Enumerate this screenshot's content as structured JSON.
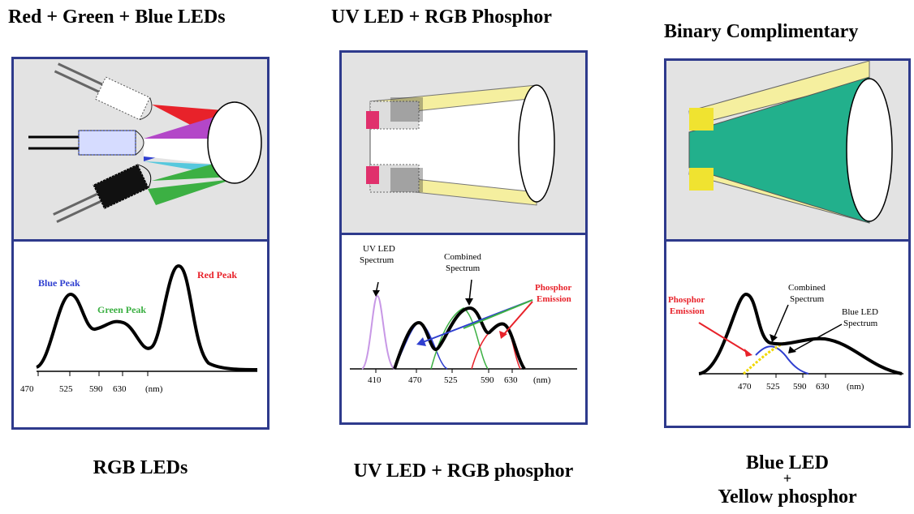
{
  "col1": {
    "title": "Red + Green + Blue LEDs",
    "caption": "RGB LEDs",
    "labels": {
      "blue_peak": "Blue Peak",
      "green_peak": "Green Peak",
      "red_peak": "Red Peak"
    },
    "ticks": [
      "470",
      "525",
      "590",
      "630",
      "(nm)"
    ]
  },
  "col2": {
    "title": "UV LED + RGB Phosphor",
    "caption": "UV LED + RGB phosphor",
    "labels": {
      "uv_led_1": "UV LED",
      "uv_led_2": "Spectrum",
      "combined_1": "Combined",
      "combined_2": "Spectrum",
      "phosphor_1": "Phosphor",
      "phosphor_2": "Emission"
    },
    "ticks": [
      "410",
      "470",
      "525",
      "590",
      "630",
      "(nm)"
    ]
  },
  "col3": {
    "title": "Binary Complimentary",
    "caption_line1": "Blue LED",
    "caption_line2": "+",
    "caption_line3": "Yellow phosphor",
    "labels": {
      "phosphor_1": "Phosphor",
      "phosphor_2": "Emission",
      "combined_1": "Combined",
      "combined_2": "Spectrum",
      "blue_led_1": "Blue LED",
      "blue_led_2": "Spectrum"
    },
    "ticks": [
      "470",
      "525",
      "590",
      "630",
      "(nm)"
    ]
  },
  "colors": {
    "border": "#2e3a8c",
    "panel_bg": "#e3e3e3",
    "red": "#e8222a",
    "green": "#3cb043",
    "blue": "#2f3fd0",
    "magenta": "#b347c8",
    "cyan": "#56c8dd",
    "teal": "#22b08c",
    "yellow": "#f5ef9f",
    "pink": "#e0306c",
    "uv": "#c898e6"
  }
}
